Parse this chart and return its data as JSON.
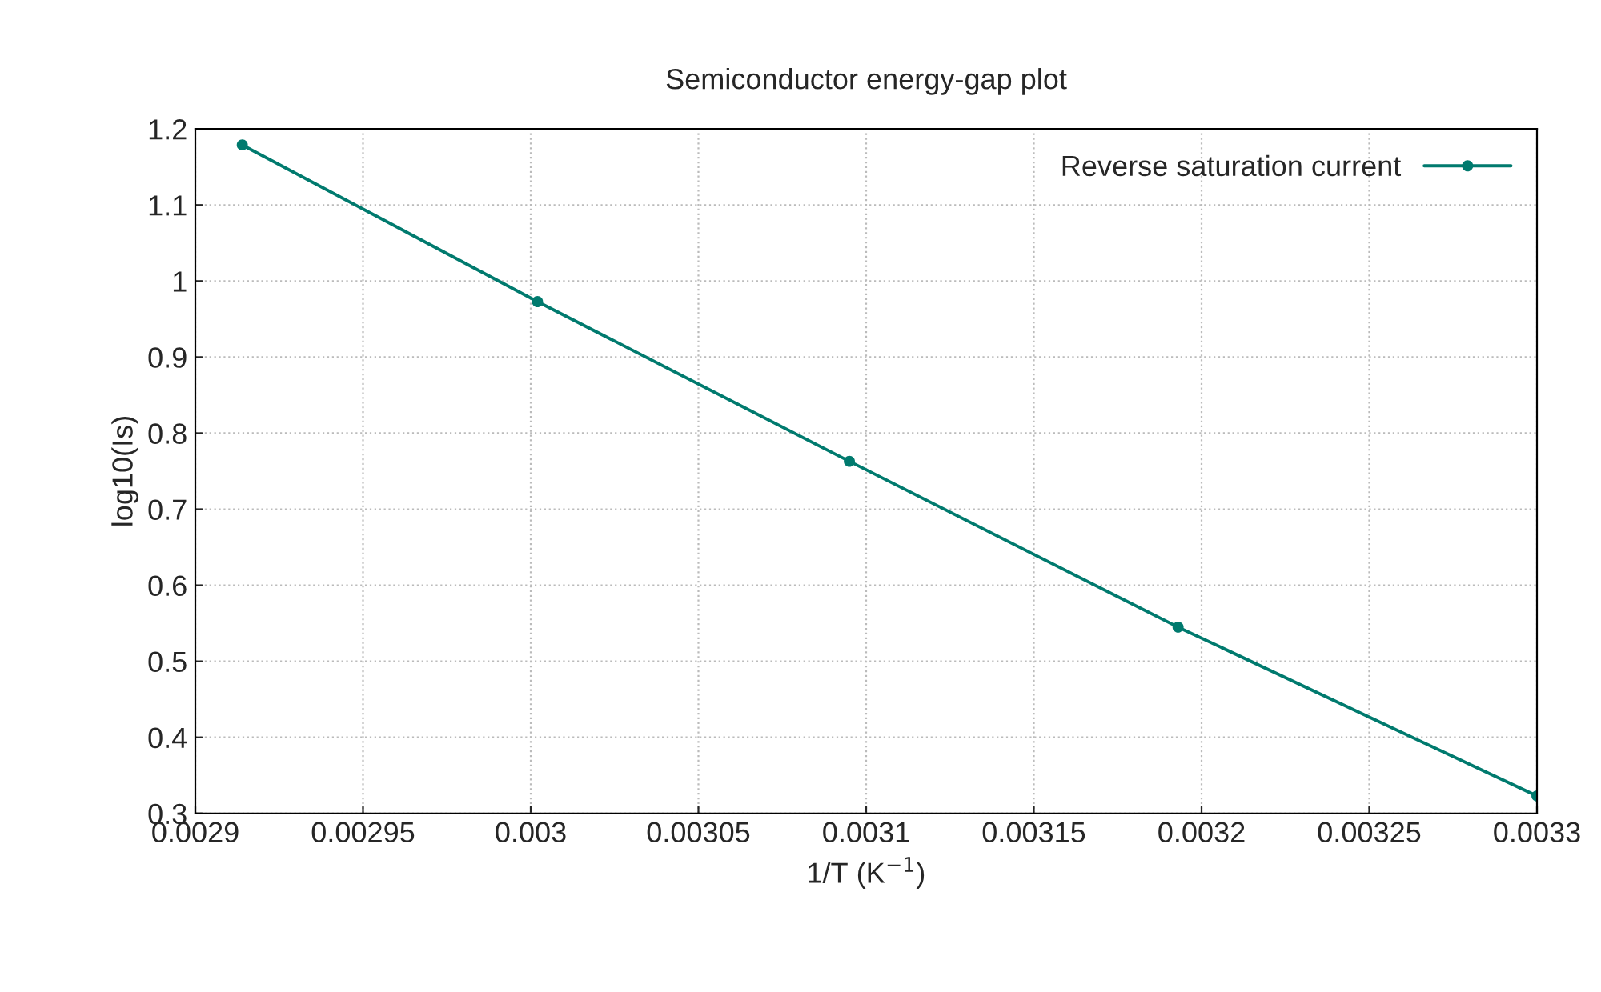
{
  "chart_data": {
    "type": "line",
    "title": "Semiconductor energy-gap plot",
    "xlabel": "1/T (K$^{−1}$)",
    "ylabel": "log10(Is)",
    "series": [
      {
        "name": "Reverse saturation current",
        "color": "#007a6e",
        "x": [
          0.002914,
          0.003002,
          0.003095,
          0.003193,
          0.0033
        ],
        "values": [
          1.179,
          0.973,
          0.763,
          0.545,
          0.323
        ]
      }
    ],
    "xlim": [
      0.0029,
      0.0033
    ],
    "xticks": [
      0.0029,
      0.00295,
      0.003,
      0.00305,
      0.0031,
      0.00315,
      0.0032,
      0.00325,
      0.0033
    ],
    "ylim": [
      0.3,
      1.2
    ],
    "yticks": [
      0.3,
      0.4,
      0.5,
      0.6,
      0.7,
      0.8,
      0.9,
      1,
      1.1,
      1.2
    ],
    "grid": true,
    "legend": "top right",
    "marker": "circle",
    "line_style": "solid"
  }
}
